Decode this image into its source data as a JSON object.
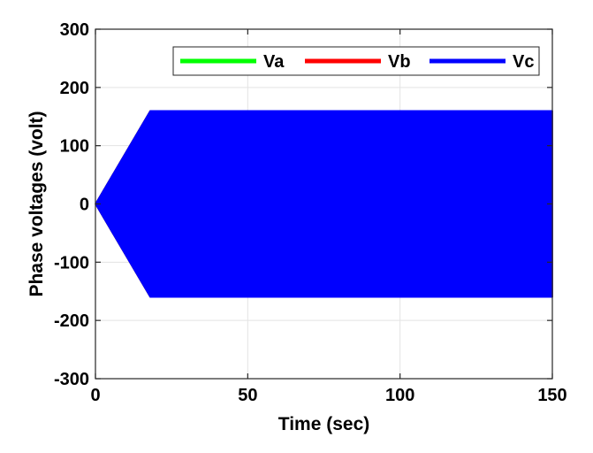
{
  "chart_data": {
    "type": "line",
    "title": "",
    "xlabel": "Time (sec)",
    "ylabel": "Phase voltages (volt)",
    "xlim": [
      0,
      150
    ],
    "ylim": [
      -300,
      300
    ],
    "xticks": [
      0,
      50,
      100,
      150
    ],
    "yticks": [
      300,
      200,
      100,
      0,
      -100,
      -200,
      -300
    ],
    "grid": true,
    "legend_position": "top-right",
    "series": [
      {
        "name": "Va",
        "color": "#00ff00",
        "envelope": {
          "x": [
            0,
            18,
            150
          ],
          "upper": [
            0,
            160,
            160
          ],
          "lower": [
            0,
            -160,
            -160
          ]
        }
      },
      {
        "name": "Vb",
        "color": "#ff0000",
        "envelope": {
          "x": [
            0,
            18,
            150
          ],
          "upper": [
            0,
            160,
            160
          ],
          "lower": [
            0,
            -160,
            -160
          ]
        }
      },
      {
        "name": "Vc",
        "color": "#0000ff",
        "envelope": {
          "x": [
            0,
            18,
            150
          ],
          "upper": [
            0,
            160,
            160
          ],
          "lower": [
            0,
            -160,
            -160
          ]
        }
      }
    ]
  }
}
